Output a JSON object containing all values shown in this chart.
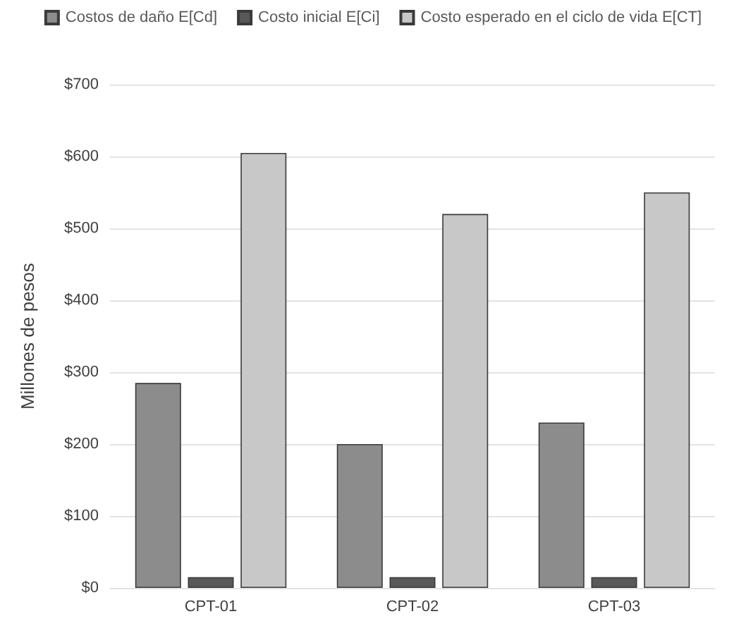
{
  "chart_data": {
    "type": "bar",
    "ylabel": "Millones de pesos",
    "categories": [
      "CPT-01",
      "CPT-02",
      "CPT-03"
    ],
    "series": [
      {
        "name": "Costos de daño E[Cd]",
        "color": "#8c8c8c",
        "values": [
          285,
          200,
          230
        ]
      },
      {
        "name": "Costo inicial E[Ci]",
        "color": "#595959",
        "values": [
          15,
          15,
          15
        ]
      },
      {
        "name": "Costo esperado en el ciclo de vida E[CT]",
        "color": "#c8c8c8",
        "values": [
          605,
          520,
          550
        ]
      }
    ],
    "ylim": [
      0,
      700
    ],
    "yticks": [
      {
        "value": 0,
        "label": "$0"
      },
      {
        "value": 100,
        "label": "$100"
      },
      {
        "value": 200,
        "label": "$200"
      },
      {
        "value": 300,
        "label": "$300"
      },
      {
        "value": 400,
        "label": "$400"
      },
      {
        "value": 500,
        "label": "$500"
      },
      {
        "value": 600,
        "label": "$600"
      },
      {
        "value": 700,
        "label": "$700"
      }
    ],
    "grid": "y",
    "legend": "top"
  }
}
